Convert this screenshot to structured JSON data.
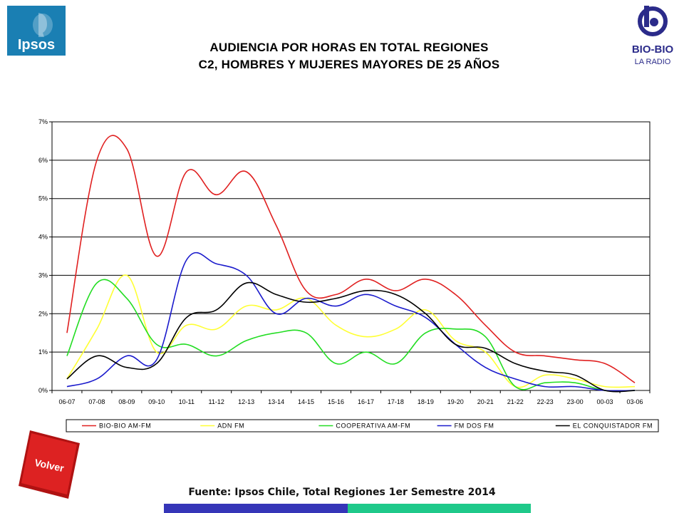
{
  "logos": {
    "ipsos_text": "Ipsos",
    "bio_text": "BIO-BIO",
    "bio_sub": "LA RADIO"
  },
  "title_line1": "AUDIENCIA POR HORAS EN TOTAL REGIONES",
  "title_line2": "C2, HOMBRES Y MUJERES MAYORES DE 25 AÑOS",
  "source": "Fuente: Ipsos Chile, Total Regiones 1er Semestre 2014",
  "volver_label": "Volver",
  "colors": {
    "bar_left": "#3535b8",
    "bar_right": "#1fc98a",
    "volver_red": "#d81d1d"
  },
  "chart_data": {
    "type": "line",
    "title": "",
    "xlabel": "",
    "ylabel": "",
    "ylim": [
      0,
      7
    ],
    "y_ticks": [
      "0%",
      "1%",
      "2%",
      "3%",
      "4%",
      "5%",
      "6%",
      "7%"
    ],
    "grid": true,
    "legend_position": "bottom",
    "categories": [
      "06-07",
      "07-08",
      "08-09",
      "09-10",
      "10-11",
      "11-12",
      "12-13",
      "13-14",
      "14-15",
      "15-16",
      "16-17",
      "17-18",
      "18-19",
      "19-20",
      "20-21",
      "21-22",
      "22-23",
      "23-00",
      "00-03",
      "03-06"
    ],
    "series": [
      {
        "name": "BIO-BIO AM-FM",
        "color": "#e02020",
        "values": [
          1.5,
          6.0,
          6.3,
          3.5,
          5.7,
          5.1,
          5.7,
          4.3,
          2.6,
          2.5,
          2.9,
          2.6,
          2.9,
          2.5,
          1.7,
          1.0,
          0.9,
          0.8,
          0.7,
          0.2
        ]
      },
      {
        "name": "ADN FM",
        "color": "#ffff33",
        "values": [
          0.3,
          1.6,
          3.0,
          1.0,
          1.7,
          1.6,
          2.2,
          2.1,
          2.4,
          1.7,
          1.4,
          1.6,
          2.1,
          1.3,
          1.0,
          0.1,
          0.4,
          0.3,
          0.1,
          0.1
        ]
      },
      {
        "name": "COOPERATIVA AM-FM",
        "color": "#22dd22",
        "values": [
          0.9,
          2.8,
          2.4,
          1.2,
          1.2,
          0.9,
          1.3,
          1.5,
          1.5,
          0.7,
          1.0,
          0.7,
          1.5,
          1.6,
          1.4,
          0.1,
          0.2,
          0.2,
          0.0,
          0.0
        ]
      },
      {
        "name": "FM DOS FM",
        "color": "#1a1acc",
        "values": [
          0.1,
          0.3,
          0.9,
          0.8,
          3.4,
          3.3,
          3.0,
          2.0,
          2.4,
          2.2,
          2.5,
          2.2,
          1.9,
          1.2,
          0.6,
          0.3,
          0.1,
          0.1,
          0.0,
          0.0
        ]
      },
      {
        "name": "EL CONQUISTADOR FM",
        "color": "#000000",
        "values": [
          0.3,
          0.9,
          0.6,
          0.7,
          1.9,
          2.1,
          2.8,
          2.5,
          2.3,
          2.4,
          2.6,
          2.5,
          2.0,
          1.2,
          1.1,
          0.7,
          0.5,
          0.4,
          0.0,
          0.0
        ]
      }
    ]
  }
}
